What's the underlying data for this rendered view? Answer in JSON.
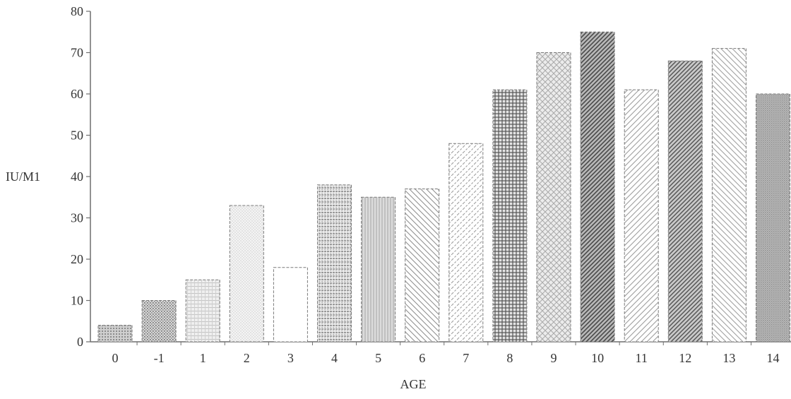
{
  "chart_data": {
    "type": "bar",
    "title": "",
    "xlabel": "AGE",
    "ylabel": "IU/M1",
    "categories": [
      "0",
      "-1",
      "1",
      "2",
      "3",
      "4",
      "5",
      "6",
      "7",
      "8",
      "9",
      "10",
      "11",
      "12",
      "13",
      "14"
    ],
    "values": [
      4,
      10,
      15,
      33,
      18,
      38,
      35,
      37,
      48,
      61,
      70,
      75,
      61,
      68,
      71,
      60
    ],
    "ylim": [
      0,
      80
    ],
    "yticks": [
      "0",
      "10",
      "20",
      "30",
      "40",
      "50",
      "60",
      "70",
      "80"
    ],
    "grid": false,
    "legend": "none"
  }
}
